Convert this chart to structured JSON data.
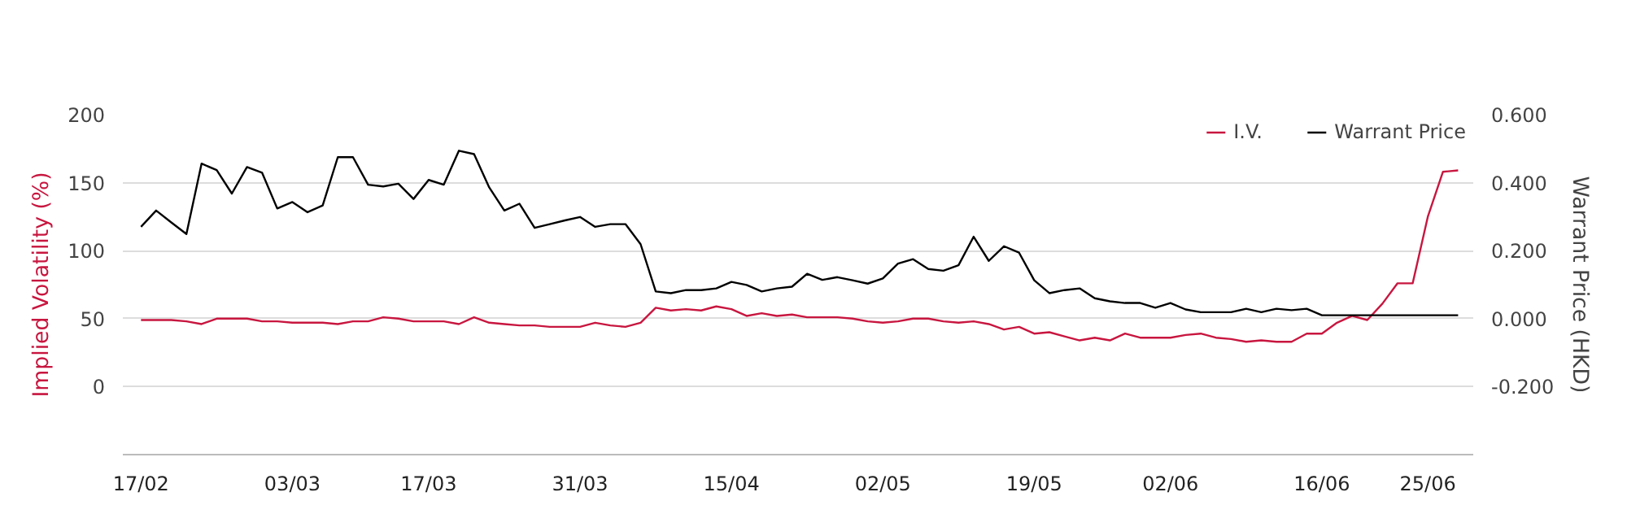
{
  "chart_data": {
    "type": "line",
    "categories": [
      "17/02",
      null,
      null,
      null,
      null,
      null,
      null,
      null,
      null,
      null,
      "03/03",
      null,
      null,
      null,
      null,
      null,
      null,
      null,
      null,
      "17/03",
      null,
      null,
      null,
      null,
      null,
      null,
      null,
      null,
      null,
      "31/03",
      null,
      null,
      null,
      null,
      null,
      null,
      null,
      null,
      null,
      "15/04",
      null,
      null,
      null,
      null,
      null,
      null,
      null,
      null,
      null,
      "02/05",
      null,
      null,
      null,
      null,
      null,
      null,
      null,
      null,
      null,
      "19/05",
      null,
      null,
      null,
      null,
      null,
      null,
      null,
      null,
      "02/06",
      null,
      null,
      null,
      null,
      null,
      null,
      null,
      null,
      null,
      "16/06",
      null,
      null,
      null,
      null,
      null,
      null,
      "25/06",
      null,
      null
    ],
    "series": [
      {
        "name": "I.V.",
        "color": "#c8163f",
        "values": [
          49,
          49,
          49,
          48,
          46,
          50,
          50,
          50,
          48,
          48,
          47,
          47,
          47,
          46,
          48,
          48,
          51,
          50,
          48,
          48,
          48,
          46,
          51,
          47,
          46,
          45,
          45,
          44,
          44,
          44,
          47,
          45,
          44,
          47,
          58,
          56,
          57,
          56,
          59,
          57,
          52,
          54,
          52,
          53,
          51,
          51,
          51,
          50,
          48,
          47,
          48,
          50,
          50,
          48,
          47,
          48,
          46,
          42,
          44,
          39,
          40,
          37,
          34,
          36,
          34,
          39,
          36,
          36,
          36,
          38,
          39,
          36,
          35,
          33,
          34,
          33,
          33,
          39,
          39,
          47,
          52,
          49,
          61,
          76,
          76,
          125,
          158,
          159
        ]
      },
      {
        "name": "Warrant Price",
        "color": "#000000",
        "axis": "y2",
        "values": [
          0.27,
          0.318,
          0.283,
          0.249,
          0.456,
          0.437,
          0.368,
          0.446,
          0.429,
          0.324,
          0.343,
          0.313,
          0.333,
          0.475,
          0.475,
          0.394,
          0.389,
          0.397,
          0.352,
          0.408,
          0.394,
          0.494,
          0.484,
          0.386,
          0.318,
          0.338,
          0.267,
          0.278,
          0.289,
          0.299,
          0.27,
          0.278,
          0.278,
          0.219,
          0.08,
          0.075,
          0.084,
          0.084,
          0.089,
          0.108,
          0.099,
          0.08,
          0.089,
          0.094,
          0.132,
          0.114,
          0.122,
          0.113,
          0.103,
          0.118,
          0.162,
          0.175,
          0.146,
          0.141,
          0.157,
          0.241,
          0.17,
          0.213,
          0.194,
          0.113,
          0.075,
          0.084,
          0.089,
          0.06,
          0.051,
          0.046,
          0.046,
          0.032,
          0.046,
          0.027,
          0.019,
          0.019,
          0.019,
          0.029,
          0.019,
          0.029,
          0.025,
          0.029,
          0.01,
          0.01,
          0.01,
          0.01,
          0.01,
          0.01,
          0.01,
          0.01,
          0.01,
          0.01
        ]
      }
    ],
    "ylabel": "Implied Volatility (%)",
    "y2label": "Warrant Price (HKD)",
    "ylim": [
      -50,
      200
    ],
    "yticks": [
      0,
      50,
      100,
      150,
      200
    ],
    "y2lim": [
      -0.4,
      0.6
    ],
    "y2ticks": [
      {
        "value": -0.2,
        "label": "-0.200"
      },
      {
        "value": 0,
        "label": "0.000"
      },
      {
        "value": 0.2,
        "label": "0.200"
      },
      {
        "value": 0.4,
        "label": "0.400"
      },
      {
        "value": 0.6,
        "label": "0.600"
      }
    ],
    "grid": "y",
    "legend": "top right"
  }
}
